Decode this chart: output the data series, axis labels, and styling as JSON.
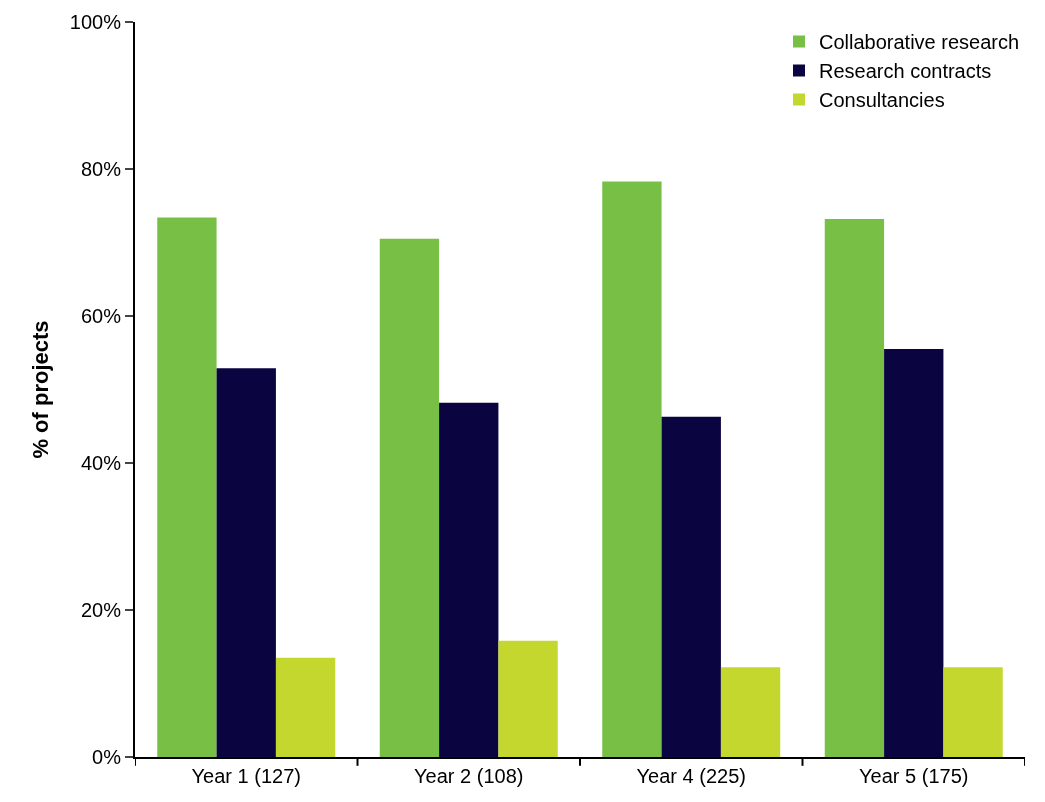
{
  "chart_data": {
    "type": "bar",
    "ylabel": "% of projects",
    "categories": [
      "Year 1 (127)",
      "Year 2 (108)",
      "Year 4 (225)",
      "Year 5 (175)"
    ],
    "series": [
      {
        "name": "Collaborative research",
        "color": "#77bf45",
        "values": [
          73.4,
          70.5,
          78.3,
          73.2
        ]
      },
      {
        "name": "Research contracts",
        "color": "#0a0540",
        "values": [
          52.9,
          48.2,
          46.3,
          55.5
        ]
      },
      {
        "name": "Consultancies",
        "color": "#c3d72f",
        "values": [
          13.5,
          15.8,
          12.2,
          12.2
        ]
      }
    ],
    "ylim": [
      0,
      100
    ],
    "yticks": [
      {
        "value": 0,
        "label": "0%"
      },
      {
        "value": 20,
        "label": "20%"
      },
      {
        "value": 40,
        "label": "40%"
      },
      {
        "value": 60,
        "label": "60%"
      },
      {
        "value": 80,
        "label": "80%"
      },
      {
        "value": 100,
        "label": "100%"
      }
    ],
    "legend": "top right"
  }
}
